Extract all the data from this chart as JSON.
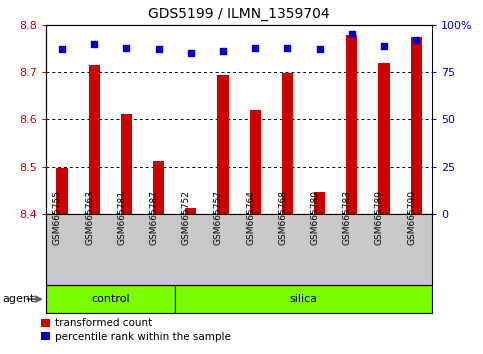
{
  "title": "GDS5199 / ILMN_1359704",
  "samples": [
    "GSM665755",
    "GSM665763",
    "GSM665781",
    "GSM665787",
    "GSM665752",
    "GSM665757",
    "GSM665764",
    "GSM665768",
    "GSM665780",
    "GSM665783",
    "GSM665789",
    "GSM665790"
  ],
  "red_values": [
    8.497,
    8.716,
    8.612,
    8.513,
    8.413,
    8.693,
    8.62,
    8.698,
    8.446,
    8.779,
    8.72,
    8.775
  ],
  "blue_values": [
    87,
    90,
    88,
    87,
    85,
    86,
    88,
    88,
    87,
    95,
    89,
    92
  ],
  "ymin": 8.4,
  "ymax": 8.8,
  "yticks_left": [
    8.4,
    8.5,
    8.6,
    8.7,
    8.8
  ],
  "yticks_right": [
    0,
    25,
    50,
    75,
    100
  ],
  "grid_vals": [
    8.5,
    8.6,
    8.7
  ],
  "n_control": 4,
  "n_silica": 8,
  "bar_color": "#cc0000",
  "dot_color": "#0000cd",
  "control_color": "#7cfc00",
  "silica_color": "#7cfc00",
  "bg_color": "#c8c8c8",
  "bar_width": 0.35,
  "baseline": 8.4,
  "agent_arrow_color": "#808080"
}
